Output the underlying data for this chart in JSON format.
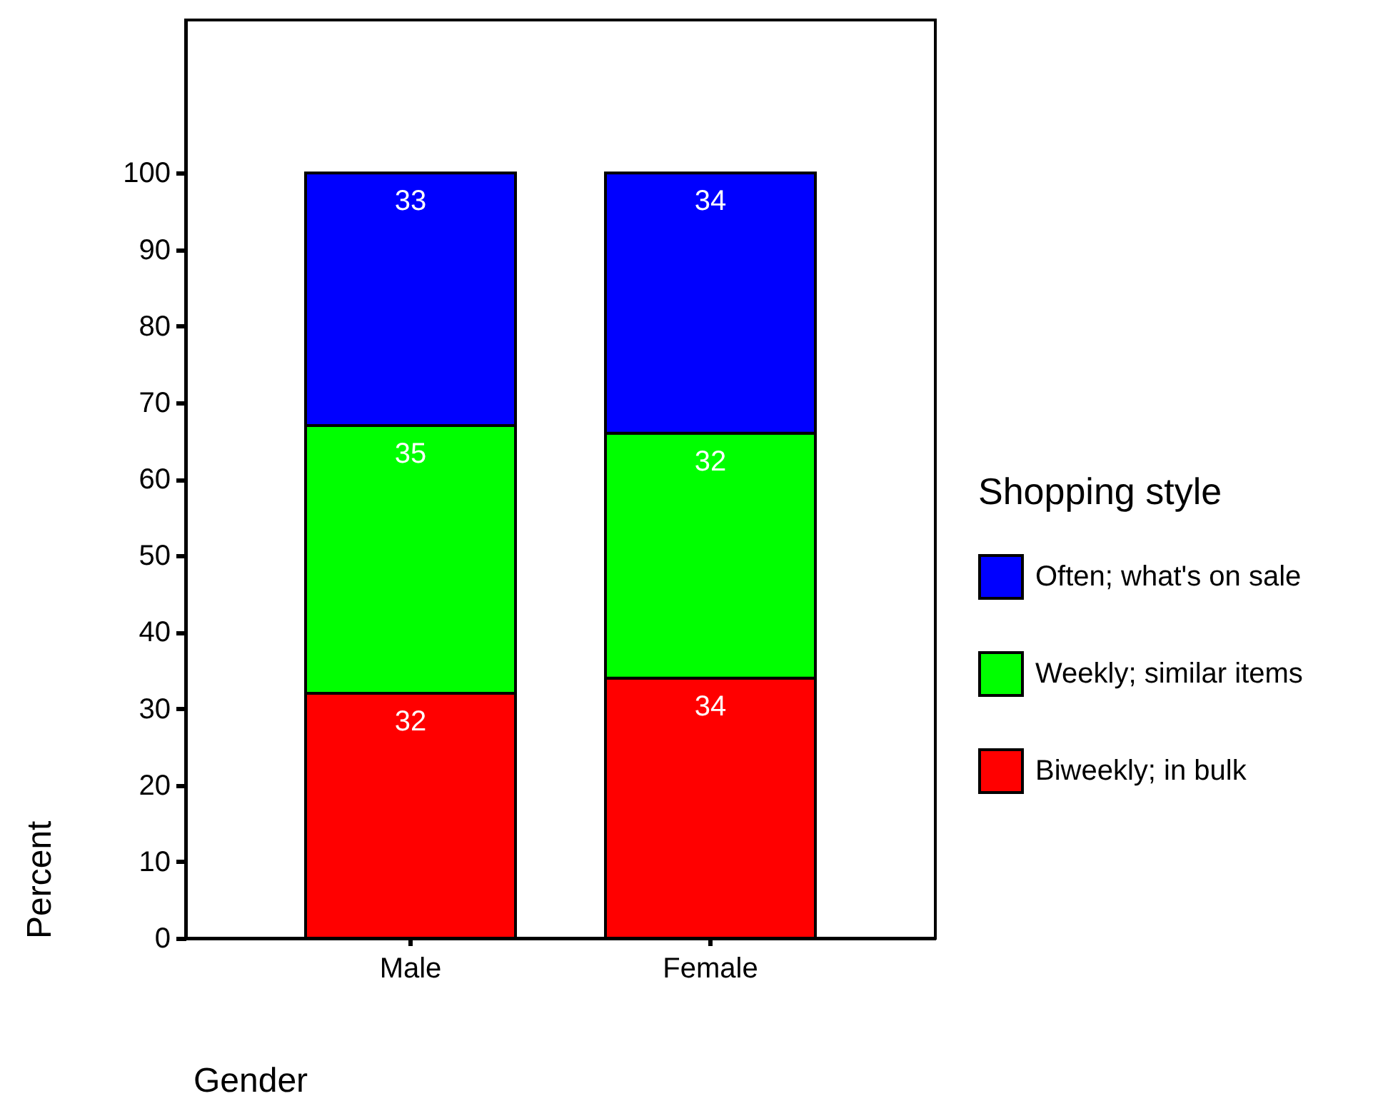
{
  "chart_data": {
    "type": "bar",
    "stacked": true,
    "xlabel": "Gender",
    "ylabel": "Percent",
    "legend_title": "Shopping style",
    "categories": [
      "Male",
      "Female"
    ],
    "series": [
      {
        "name": "Biweekly; in bulk",
        "color": "#ff0000",
        "values": [
          32,
          34
        ]
      },
      {
        "name": "Weekly; similar items",
        "color": "#00ff00",
        "values": [
          35,
          32
        ]
      },
      {
        "name": "Often; what's on sale",
        "color": "#0000ff",
        "values": [
          33,
          34
        ]
      }
    ],
    "ylim": [
      0,
      120
    ],
    "yticks": [
      0,
      10,
      20,
      30,
      40,
      50,
      60,
      70,
      80,
      90,
      100
    ],
    "data_labels": true,
    "legend": "right",
    "grid": false
  }
}
